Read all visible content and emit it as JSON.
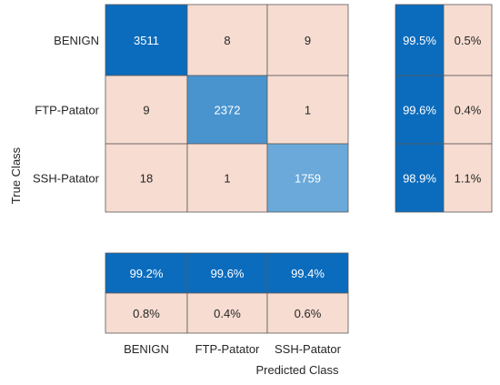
{
  "chart_data": {
    "type": "heatmap",
    "classes": [
      "BENIGN",
      "FTP-Patator",
      "SSH-Patator"
    ],
    "ylabel": "True Class",
    "xlabel": "Predicted Class",
    "matrix": [
      [
        3511,
        8,
        9
      ],
      [
        9,
        2372,
        1
      ],
      [
        18,
        1,
        1759
      ]
    ],
    "row_summary": [
      [
        "99.5%",
        "0.5%"
      ],
      [
        "99.6%",
        "0.4%"
      ],
      [
        "98.9%",
        "1.1%"
      ]
    ],
    "column_summary": [
      [
        "99.2%",
        "99.6%",
        "99.4%"
      ],
      [
        "0.8%",
        "0.4%",
        "0.6%"
      ]
    ],
    "colors": {
      "strong_blue": "#0b6cbd",
      "mid_blue": "#3d8ccc",
      "light_blue": "#6aa9d9",
      "peach": "#f7dcd1",
      "dark_text": "#262626",
      "light_text": "#ffffff"
    }
  }
}
